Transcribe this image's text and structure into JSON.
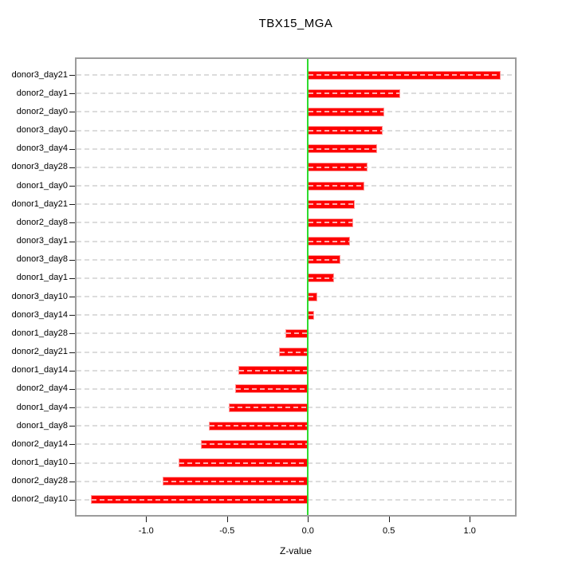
{
  "title": "TBX15_MGA",
  "x_axis": {
    "label": "Z-value",
    "tick_labels": [
      "-1.0",
      "-0.5",
      "0.0",
      "0.5",
      "1.0"
    ],
    "tick_values": [
      -1.0,
      -0.5,
      0.0,
      0.5,
      1.0
    ]
  },
  "chart_data": {
    "type": "bar",
    "orientation": "horizontal",
    "title": "TBX15_MGA",
    "xlabel": "Z-value",
    "ylabel": "",
    "xlim": [
      -1.43,
      1.28
    ],
    "grid": "dashed-line-per-category",
    "legend": "none",
    "zero_reference_line": 0,
    "categories": [
      "donor3_day21",
      "donor2_day1",
      "donor2_day0",
      "donor3_day0",
      "donor3_day4",
      "donor3_day28",
      "donor1_day0",
      "donor1_day21",
      "donor2_day8",
      "donor3_day1",
      "donor3_day8",
      "donor1_day1",
      "donor3_day10",
      "donor3_day14",
      "donor1_day28",
      "donor2_day21",
      "donor1_day14",
      "donor2_day4",
      "donor1_day4",
      "donor1_day8",
      "donor2_day14",
      "donor1_day10",
      "donor2_day28",
      "donor2_day10"
    ],
    "values": [
      1.19,
      0.57,
      0.47,
      0.46,
      0.43,
      0.37,
      0.35,
      0.29,
      0.28,
      0.26,
      0.2,
      0.16,
      0.06,
      0.04,
      -0.14,
      -0.18,
      -0.43,
      -0.45,
      -0.49,
      -0.61,
      -0.66,
      -0.8,
      -0.9,
      -1.34
    ]
  },
  "colors": {
    "bar_fill": "#fe0000",
    "bar_border": "#ff9a9a",
    "zero_line": "#2edc2e",
    "grid_line": "#dcdcdc",
    "plot_border": "#9c9c9c",
    "text": "#000000"
  }
}
